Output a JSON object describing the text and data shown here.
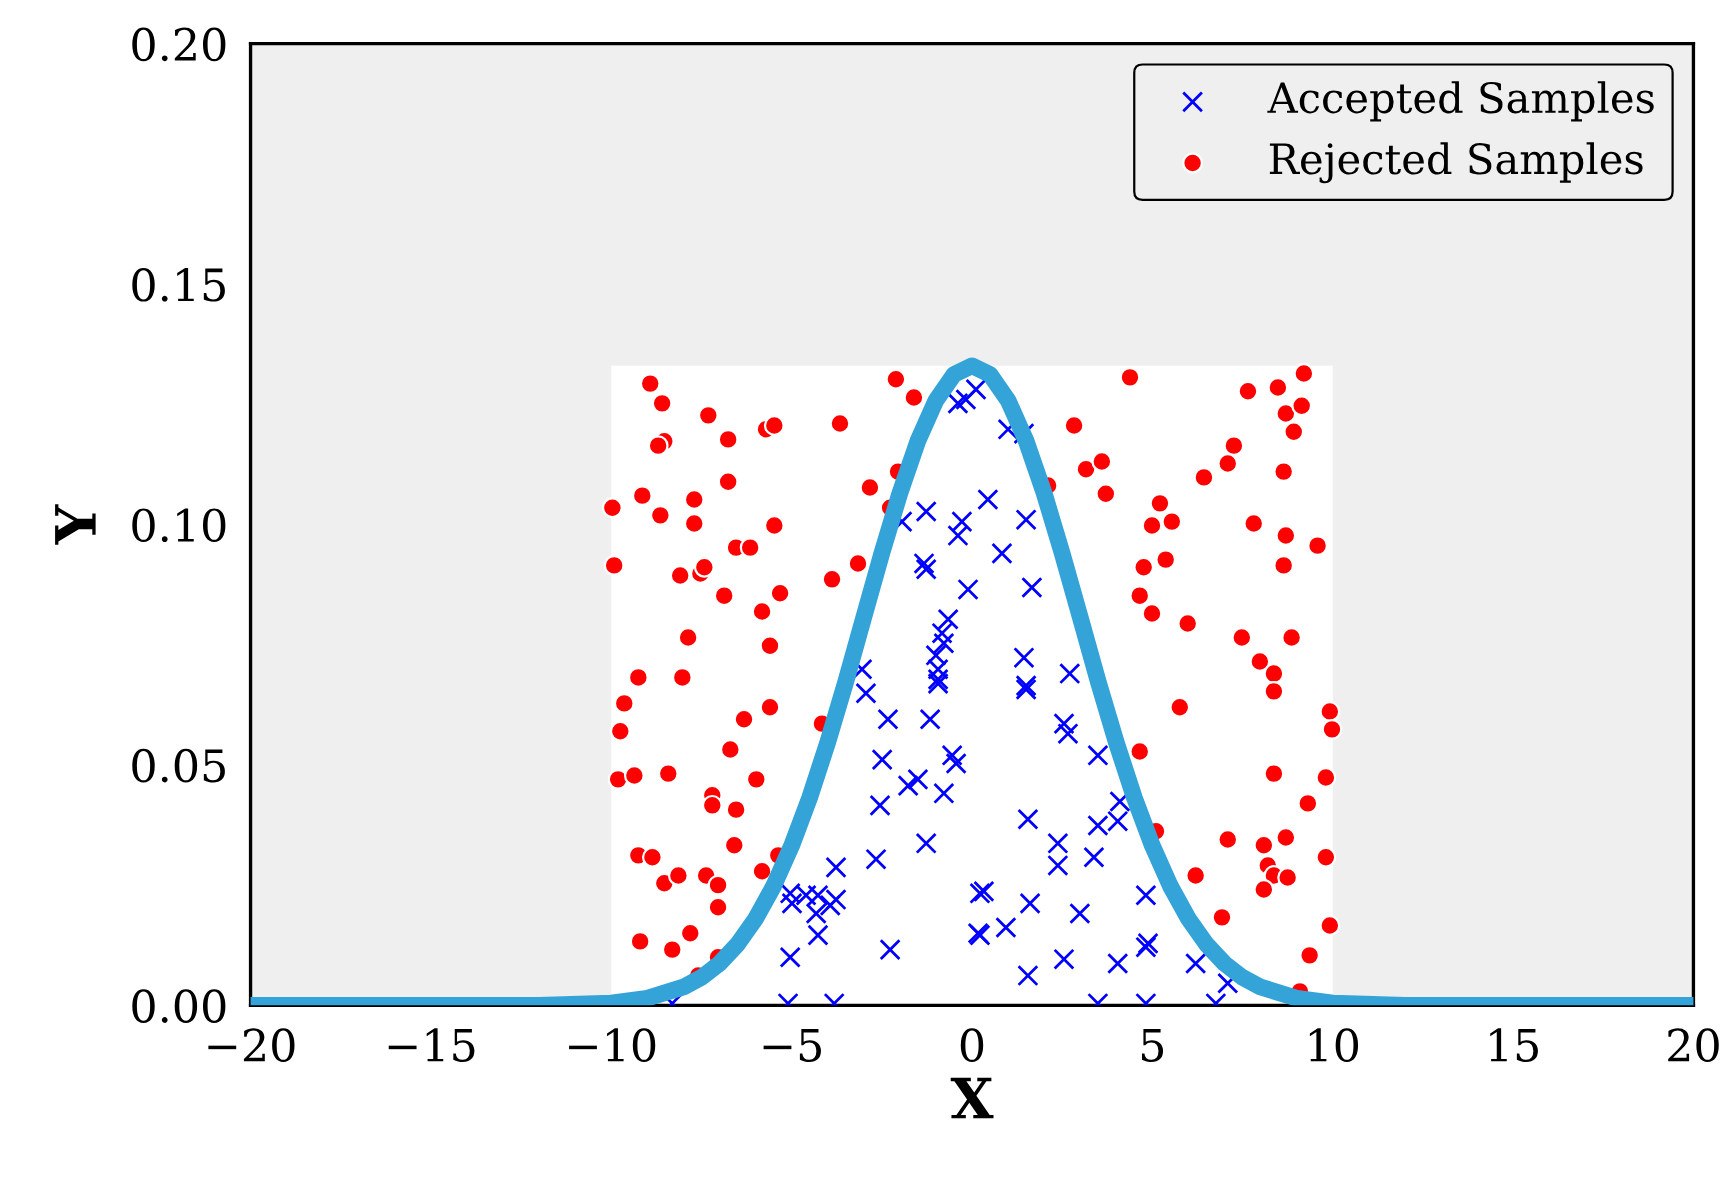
{
  "chart_data": {
    "type": "scatter",
    "xlabel": "X",
    "ylabel": "Y",
    "xlim": [
      -20,
      20
    ],
    "ylim": [
      0,
      0.2
    ],
    "xticks": [
      {
        "value": -20,
        "label": "−20"
      },
      {
        "value": -15,
        "label": "−15"
      },
      {
        "value": -10,
        "label": "−10"
      },
      {
        "value": -5,
        "label": "−5"
      },
      0,
      5,
      10,
      15,
      20
    ],
    "yticks": [
      {
        "value": 0,
        "label": "0.00"
      },
      {
        "value": 0.05,
        "label": "0.05"
      },
      {
        "value": 0.1,
        "label": "0.10"
      },
      {
        "value": 0.15,
        "label": "0.15"
      },
      {
        "value": 0.2,
        "label": "0.20"
      }
    ],
    "grid": false,
    "legend": "top right",
    "series": [
      {
        "type": "area",
        "color": "#ffffff",
        "x": [
          -10,
          10
        ],
        "values": [
          0.133,
          0.133
        ]
      },
      {
        "name": "Accepted Samples",
        "color": "#0000ff",
        "marker": "cross",
        "x": [
          -0.39,
          0.11,
          -0.17,
          -1.27,
          -1.94,
          -0.28,
          -0.39,
          -1.33,
          -1.27,
          -0.11,
          -0.66,
          -0.83,
          -0.78,
          -1.0,
          -0.94,
          -0.94,
          -3.05,
          1.0,
          1.44,
          0.44,
          1.5,
          0.83,
          1.66,
          1.44,
          2.71,
          1.5,
          -2.94,
          -2.33,
          -1.16,
          -0.94,
          -2.49,
          -0.55,
          -0.44,
          -1.5,
          -1.77,
          -0.78,
          -2.55,
          -1.27,
          -2.66,
          -3.77,
          -5.04,
          -4.6,
          -4.27,
          -3.77,
          -4.99,
          -4.32,
          -3.93,
          -4.27,
          -2.27,
          -5.04,
          -5.1,
          -3.82,
          0.22,
          0.17,
          -8.31,
          1.5,
          2.55,
          2.66,
          3.49,
          1.55,
          3.49,
          4.04,
          4.1,
          2.38,
          2.38,
          3.38,
          0.33,
          1.61,
          2.99,
          4.82,
          0.94,
          0.22,
          4.88,
          4.82,
          2.55,
          4.04,
          1.55,
          6.2,
          7.09,
          3.49,
          4.82,
          6.76
        ],
        "values": [
          0.1252,
          0.1281,
          0.126,
          0.1027,
          0.1006,
          0.1006,
          0.0977,
          0.0919,
          0.0907,
          0.0865,
          0.0803,
          0.0774,
          0.0753,
          0.0728,
          0.0699,
          0.0678,
          0.0699,
          0.1198,
          0.1189,
          0.1052,
          0.101,
          0.094,
          0.0869,
          0.0723,
          0.069,
          0.0665,
          0.0649,
          0.0595,
          0.0595,
          0.0669,
          0.0511,
          0.052,
          0.0503,
          0.047,
          0.0457,
          0.0441,
          0.0416,
          0.0337,
          0.0304,
          0.0287,
          0.0233,
          0.0229,
          0.0229,
          0.022,
          0.0212,
          0.0191,
          0.0208,
          0.0146,
          0.0116,
          0.01,
          0.0004,
          0.0004,
          0.0233,
          0.015,
          0.0004,
          0.0657,
          0.0586,
          0.0565,
          0.052,
          0.0387,
          0.0374,
          0.0383,
          0.0424,
          0.0337,
          0.0291,
          0.0308,
          0.0237,
          0.0212,
          0.0191,
          0.0229,
          0.0162,
          0.0146,
          0.0129,
          0.0121,
          0.0096,
          0.0087,
          0.0062,
          0.0087,
          0.0046,
          0.0004,
          0.0004,
          0.0004
        ]
      },
      {
        "name": "Rejected Samples",
        "color": "#ff0000",
        "marker": "circle",
        "x": [
          -8.92,
          -8.59,
          -7.31,
          -8.53,
          -8.7,
          -6.76,
          -5.71,
          -5.48,
          -3.66,
          -2.11,
          -1.61,
          -6.76,
          -9.14,
          -9.97,
          -8.64,
          -7.7,
          -7.7,
          -5.48,
          -2.83,
          -2.05,
          -2.27,
          -6.54,
          -6.15,
          -9.92,
          -8.09,
          -7.53,
          -7.42,
          -6.87,
          -5.32,
          -5.82,
          -3.16,
          -3.88,
          -7.87,
          -5.6,
          -9.25,
          -8.03,
          -9.64,
          -9.75,
          -6.32,
          -5.6,
          -4.16,
          -6.7,
          -9.81,
          -9.36,
          -8.42,
          -5.98,
          -7.2,
          -7.2,
          -6.54,
          -6.59,
          -9.25,
          -8.86,
          -8.53,
          -8.14,
          -7.37,
          -7.04,
          -5.82,
          -5.37,
          -7.04,
          -9.2,
          -7.81,
          -8.31,
          -7.04,
          -7.59,
          4.38,
          2.83,
          3.16,
          3.6,
          3.71,
          2.11,
          7.65,
          8.48,
          9.2,
          8.7,
          9.14,
          8.92,
          7.26,
          7.09,
          6.43,
          8.64,
          5.21,
          4.99,
          5.54,
          7.81,
          8.7,
          9.58,
          4.76,
          5.37,
          8.64,
          4.65,
          4.99,
          5.98,
          7.48,
          8.86,
          7.98,
          8.37,
          8.37,
          5.76,
          9.92,
          9.98,
          4.65,
          8.37,
          9.81,
          9.31,
          5.1,
          7.09,
          8.09,
          8.7,
          9.81,
          8.2,
          8.37,
          8.75,
          8.09,
          6.2,
          6.93,
          9.92,
          9.36,
          9.09
        ],
        "values": [
          0.1293,
          0.1252,
          0.1227,
          0.1173,
          0.1164,
          0.1177,
          0.1198,
          0.1206,
          0.121,
          0.1302,
          0.1264,
          0.1089,
          0.106,
          0.1035,
          0.1019,
          0.1052,
          0.1002,
          0.0998,
          0.1077,
          0.111,
          0.1035,
          0.0952,
          0.0952,
          0.0915,
          0.0894,
          0.0898,
          0.0911,
          0.0852,
          0.0857,
          0.0819,
          0.0919,
          0.0886,
          0.0765,
          0.0748,
          0.0682,
          0.0682,
          0.0628,
          0.057,
          0.0595,
          0.062,
          0.0586,
          0.0532,
          0.047,
          0.0478,
          0.0482,
          0.047,
          0.0437,
          0.0416,
          0.0407,
          0.0333,
          0.0312,
          0.0308,
          0.0254,
          0.027,
          0.027,
          0.025,
          0.0279,
          0.0312,
          0.0204,
          0.0133,
          0.015,
          0.0116,
          0.01,
          0.0062,
          0.1306,
          0.1206,
          0.1115,
          0.1131,
          0.1064,
          0.1081,
          0.1277,
          0.1285,
          0.1314,
          0.1231,
          0.1247,
          0.1193,
          0.1164,
          0.1127,
          0.1098,
          0.111,
          0.1044,
          0.0998,
          0.1006,
          0.1002,
          0.0977,
          0.0956,
          0.0911,
          0.0927,
          0.0915,
          0.0852,
          0.0815,
          0.0794,
          0.0765,
          0.0765,
          0.0715,
          0.069,
          0.0653,
          0.062,
          0.0611,
          0.0574,
          0.0528,
          0.0482,
          0.0474,
          0.042,
          0.0362,
          0.0345,
          0.0333,
          0.0349,
          0.0308,
          0.0291,
          0.027,
          0.0266,
          0.0241,
          0.027,
          0.0183,
          0.0166,
          0.0104,
          0.0029
        ]
      },
      {
        "type": "line",
        "color": "#34a3d8",
        "x": [
          -20,
          -15,
          -12,
          -10,
          -9,
          -8,
          -7.5,
          -7,
          -6.5,
          -6,
          -5.5,
          -5,
          -4.5,
          -4,
          -3.5,
          -3,
          -2.5,
          -2,
          -1.5,
          -1,
          -0.5,
          0,
          0.5,
          1,
          1.5,
          2,
          2.5,
          3,
          3.5,
          4,
          4.5,
          5,
          5.5,
          6,
          6.5,
          7,
          7.5,
          8,
          9,
          10,
          12,
          15,
          20
        ],
        "values": [
          0,
          0,
          0,
          0.0005,
          0.0015,
          0.0038,
          0.0058,
          0.0087,
          0.0127,
          0.018,
          0.0248,
          0.0332,
          0.0432,
          0.0547,
          0.0673,
          0.0807,
          0.094,
          0.1065,
          0.1174,
          0.1258,
          0.1312,
          0.133,
          0.1312,
          0.1258,
          0.1174,
          0.1065,
          0.094,
          0.0807,
          0.0673,
          0.0547,
          0.0432,
          0.0332,
          0.0248,
          0.018,
          0.0127,
          0.0087,
          0.0058,
          0.0038,
          0.0015,
          0.0005,
          0,
          0,
          0
        ]
      }
    ]
  }
}
